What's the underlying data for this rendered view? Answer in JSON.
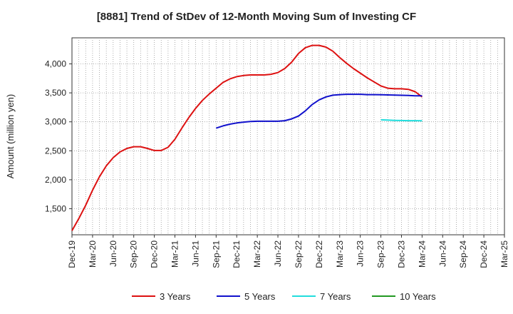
{
  "chart_data": {
    "type": "line",
    "title": "[8881]  Trend of StDev of 12-Month Moving Sum of Investing CF",
    "ylabel": "Amount (million yen)",
    "xlabel": "",
    "ylim": [
      1050,
      4450
    ],
    "yticks": [
      1500,
      2000,
      2500,
      3000,
      3500,
      4000
    ],
    "ytick_labels": [
      "1,500",
      "2,000",
      "2,500",
      "3,000",
      "3,500",
      "4,000"
    ],
    "xticks": [
      "Dec-19",
      "Mar-20",
      "Jun-20",
      "Sep-20",
      "Dec-20",
      "Mar-21",
      "Jun-21",
      "Sep-21",
      "Dec-21",
      "Mar-22",
      "Jun-22",
      "Sep-22",
      "Dec-22",
      "Mar-23",
      "Jun-23",
      "Sep-23",
      "Dec-23",
      "Mar-24",
      "Jun-24",
      "Sep-24",
      "Dec-24",
      "Mar-25"
    ],
    "grid": true,
    "legend_position": "bottom",
    "series": [
      {
        "name": "3 Years",
        "color": "#dd1111",
        "start_index": 0,
        "values": [
          1120,
          1330,
          1560,
          1820,
          2050,
          2240,
          2380,
          2480,
          2540,
          2570,
          2570,
          2540,
          2505,
          2505,
          2560,
          2700,
          2890,
          3070,
          3230,
          3370,
          3480,
          3580,
          3680,
          3740,
          3780,
          3800,
          3810,
          3810,
          3810,
          3820,
          3850,
          3920,
          4030,
          4180,
          4280,
          4320,
          4320,
          4290,
          4220,
          4110,
          4010,
          3920,
          3840,
          3760,
          3690,
          3620,
          3580,
          3570,
          3570,
          3560,
          3520,
          3430
        ]
      },
      {
        "name": "5 Years",
        "color": "#1111cc",
        "start_index": 21,
        "values": [
          2890,
          2930,
          2960,
          2980,
          2995,
          3005,
          3010,
          3010,
          3010,
          3010,
          3020,
          3050,
          3100,
          3190,
          3300,
          3380,
          3430,
          3460,
          3470,
          3475,
          3475,
          3475,
          3470,
          3470,
          3468,
          3465,
          3462,
          3458,
          3455,
          3450,
          3448
        ]
      },
      {
        "name": "7 Years",
        "color": "#22dddd",
        "start_index": 45,
        "values": [
          3035,
          3030,
          3025,
          3022,
          3020,
          3020,
          3018
        ]
      },
      {
        "name": "10 Years",
        "color": "#229922",
        "start_index": 0,
        "values": []
      }
    ]
  }
}
